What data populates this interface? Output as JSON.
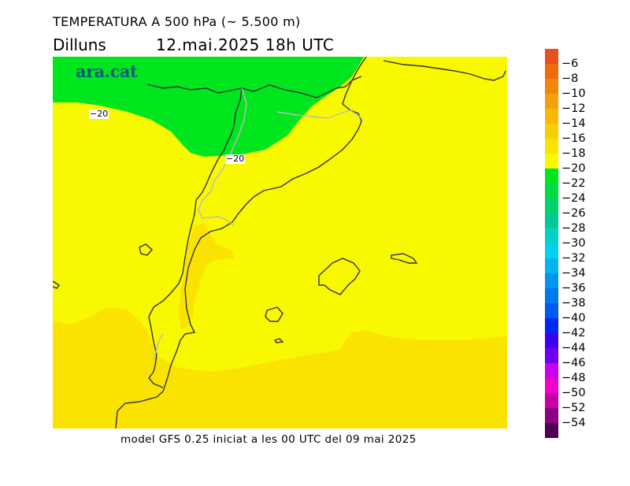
{
  "header": {
    "title": "TEMPERATURA A 500 hPa (~ 5.500 m)",
    "day": "Dilluns",
    "datetime": "12.mai.2025 18h UTC"
  },
  "logo": "ara.cat",
  "contour_labels": [
    "−20",
    "−20"
  ],
  "footer": "model GFS 0.25 iniciat a les 00 UTC del 09 mai 2025",
  "legend": {
    "labels": [
      "−6",
      "−8",
      "−10",
      "−12",
      "−14",
      "−16",
      "−18",
      "−20",
      "−22",
      "−24",
      "−26",
      "−28",
      "−30",
      "−32",
      "−34",
      "−36",
      "−38",
      "−40",
      "−42",
      "−44",
      "−46",
      "−48",
      "−50",
      "−52",
      "−54"
    ],
    "colors": [
      "#e8501e",
      "#ee6a0e",
      "#f1860a",
      "#f4a00a",
      "#f7b806",
      "#f8ce04",
      "#fae300",
      "#f8f800",
      "#00e61e",
      "#00dc46",
      "#00d26e",
      "#00c896",
      "#00d2c8",
      "#00d2f0",
      "#00b4f0",
      "#0096f0",
      "#0078f0",
      "#005af0",
      "#0028f0",
      "#3c00f0",
      "#6e00f0",
      "#c800f0",
      "#f000c8",
      "#c800a0",
      "#8c0082",
      "#500050"
    ]
  },
  "map_colors": {
    "yellow": "#f8f800",
    "orange_yellow": "#fae300",
    "green": "#00e61e",
    "coast": "#333333",
    "border": "#bbbbbb"
  }
}
